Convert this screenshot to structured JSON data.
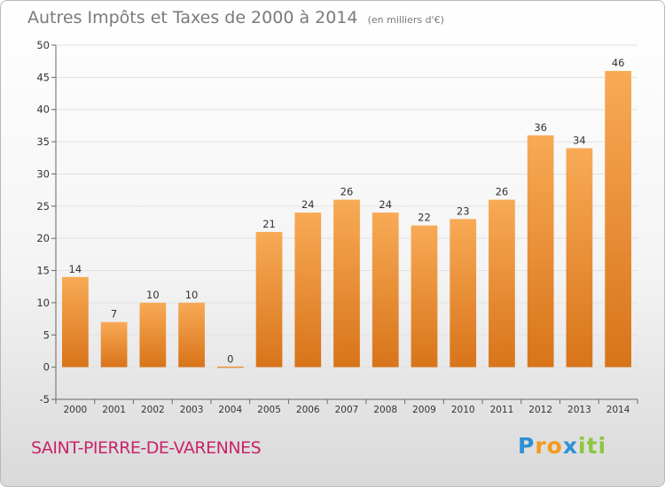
{
  "chart_data": {
    "type": "bar",
    "title": "Autres Impôts et Taxes de 2000 à 2014",
    "subtitle": "(en milliers d'€)",
    "categories": [
      "2000",
      "2001",
      "2002",
      "2003",
      "2004",
      "2005",
      "2006",
      "2007",
      "2008",
      "2009",
      "2010",
      "2011",
      "2012",
      "2013",
      "2014"
    ],
    "values": [
      14,
      7,
      10,
      10,
      0,
      21,
      24,
      26,
      24,
      22,
      23,
      26,
      36,
      34,
      46
    ],
    "ylim": [
      -5,
      50
    ],
    "yticks": [
      -5,
      0,
      5,
      10,
      15,
      20,
      25,
      30,
      35,
      40,
      45,
      50
    ],
    "grid": true,
    "bar_color": "#f0922f"
  },
  "location": "SAINT-PIERRE-DE-VARENNES",
  "logo": {
    "letters": [
      "P",
      "r",
      "o",
      "x",
      "i",
      "t",
      "i"
    ],
    "colors": [
      "#2e8fd6",
      "#f39a1e",
      "#f39a1e",
      "#2e8fd6",
      "#8dc63f",
      "#8dc63f",
      "#8dc63f"
    ]
  }
}
